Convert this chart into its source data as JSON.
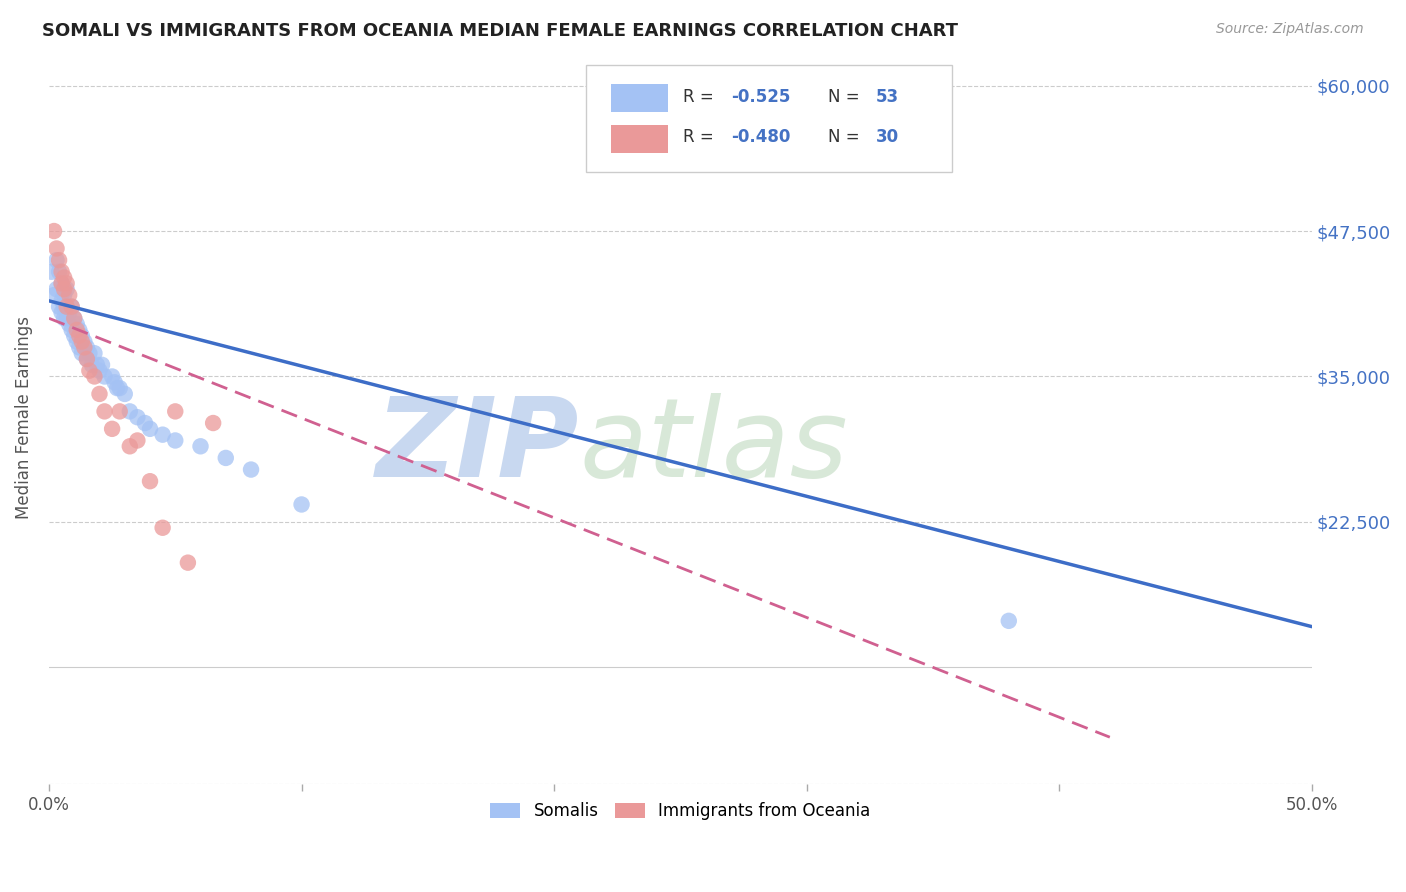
{
  "title": "SOMALI VS IMMIGRANTS FROM OCEANIA MEDIAN FEMALE EARNINGS CORRELATION CHART",
  "source": "Source: ZipAtlas.com",
  "ylabel": "Median Female Earnings",
  "yticks": [
    0,
    22500,
    35000,
    47500,
    60000
  ],
  "ytick_labels": [
    "",
    "$22,500",
    "$35,000",
    "$47,500",
    "$60,000"
  ],
  "legend_label_blue": "Somalis",
  "legend_label_pink": "Immigrants from Oceania",
  "watermark_zip": "ZIP",
  "watermark_atlas": "atlas",
  "blue_scatter_x": [
    0.001,
    0.002,
    0.003,
    0.003,
    0.004,
    0.004,
    0.005,
    0.005,
    0.005,
    0.006,
    0.006,
    0.006,
    0.007,
    0.007,
    0.007,
    0.008,
    0.008,
    0.009,
    0.009,
    0.01,
    0.01,
    0.011,
    0.011,
    0.012,
    0.012,
    0.013,
    0.013,
    0.014,
    0.015,
    0.015,
    0.016,
    0.017,
    0.018,
    0.019,
    0.02,
    0.021,
    0.022,
    0.025,
    0.026,
    0.027,
    0.028,
    0.03,
    0.032,
    0.035,
    0.038,
    0.04,
    0.045,
    0.05,
    0.06,
    0.07,
    0.08,
    0.1,
    0.38
  ],
  "blue_scatter_y": [
    44000,
    42000,
    45000,
    42500,
    44000,
    41000,
    43000,
    41500,
    40500,
    42000,
    41000,
    40000,
    42500,
    41000,
    40000,
    40500,
    39500,
    41000,
    39000,
    40000,
    38500,
    39500,
    38000,
    39000,
    37500,
    38500,
    37000,
    38000,
    37500,
    36500,
    37000,
    36000,
    37000,
    36000,
    35500,
    36000,
    35000,
    35000,
    34500,
    34000,
    34000,
    33500,
    32000,
    31500,
    31000,
    30500,
    30000,
    29500,
    29000,
    28000,
    27000,
    24000,
    14000
  ],
  "pink_scatter_x": [
    0.002,
    0.003,
    0.004,
    0.005,
    0.005,
    0.006,
    0.006,
    0.007,
    0.007,
    0.008,
    0.009,
    0.01,
    0.011,
    0.012,
    0.013,
    0.014,
    0.015,
    0.016,
    0.018,
    0.02,
    0.022,
    0.025,
    0.028,
    0.032,
    0.035,
    0.04,
    0.045,
    0.05,
    0.055,
    0.065
  ],
  "pink_scatter_y": [
    47500,
    46000,
    45000,
    44000,
    43000,
    43500,
    42500,
    43000,
    41000,
    42000,
    41000,
    40000,
    39000,
    38500,
    38000,
    37500,
    36500,
    35500,
    35000,
    33500,
    32000,
    30500,
    32000,
    29000,
    29500,
    26000,
    22000,
    32000,
    19000,
    31000
  ],
  "blue_line_x": [
    0.0,
    0.5
  ],
  "blue_line_y": [
    41500,
    13500
  ],
  "pink_line_x": [
    0.0,
    0.42
  ],
  "pink_line_y": [
    40000,
    4000
  ],
  "blue_color": "#a4c2f4",
  "pink_color": "#ea9999",
  "blue_line_color": "#3d6dc7",
  "pink_line_color": "#d06090",
  "background_color": "#ffffff",
  "grid_color": "#cccccc",
  "title_color": "#222222",
  "axis_label_color": "#4472c4",
  "xlim": [
    0.0,
    0.5
  ],
  "ylim": [
    10000,
    63000
  ]
}
